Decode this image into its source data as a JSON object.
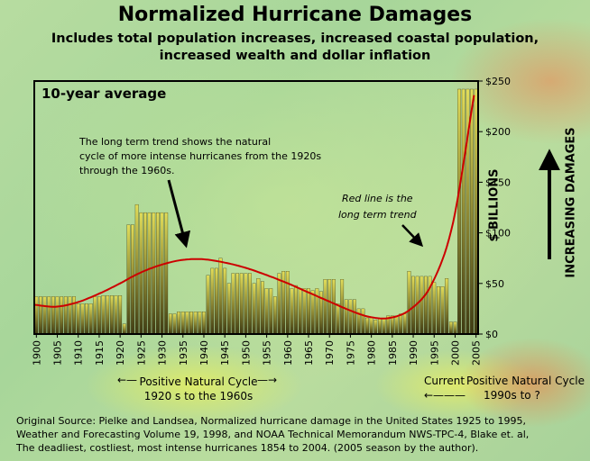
{
  "title": "Normalized Hurricane Damages",
  "subtitle_line1": "Includes total population increases, increased coastal population,",
  "subtitle_line2": "increased wealth and dollar inflation",
  "chart_data": {
    "type": "bar",
    "panel_label": "10-year average",
    "y_unit_label": "$ BILLIONS",
    "side_label": "INCREASING DAMAGES",
    "ylim": [
      0,
      250
    ],
    "yticks": [
      "$0",
      "$50",
      "$100",
      "$150",
      "$200",
      "$250"
    ],
    "ytick_values": [
      0,
      50,
      100,
      150,
      200,
      250
    ],
    "xlim": [
      1900,
      2006
    ],
    "xticks": [
      "1900",
      "1905",
      "1910",
      "1915",
      "1920",
      "1925",
      "1930",
      "1935",
      "1940",
      "1945",
      "1950",
      "1955",
      "1960",
      "1965",
      "1970",
      "1975",
      "1980",
      "1985",
      "1990",
      "1995",
      "2000",
      "2005"
    ],
    "xtick_values": [
      1900,
      1905,
      1910,
      1915,
      1920,
      1925,
      1930,
      1935,
      1940,
      1945,
      1950,
      1955,
      1960,
      1965,
      1970,
      1975,
      1980,
      1985,
      1990,
      1995,
      2000,
      2005
    ],
    "years": [
      1900,
      1901,
      1902,
      1903,
      1904,
      1905,
      1906,
      1907,
      1908,
      1909,
      1910,
      1911,
      1912,
      1913,
      1914,
      1915,
      1916,
      1917,
      1918,
      1919,
      1920,
      1921,
      1922,
      1923,
      1924,
      1925,
      1926,
      1927,
      1928,
      1929,
      1930,
      1931,
      1932,
      1933,
      1934,
      1935,
      1936,
      1937,
      1938,
      1939,
      1940,
      1941,
      1942,
      1943,
      1944,
      1945,
      1946,
      1947,
      1948,
      1949,
      1950,
      1951,
      1952,
      1953,
      1954,
      1955,
      1956,
      1957,
      1958,
      1959,
      1960,
      1961,
      1962,
      1963,
      1964,
      1965,
      1966,
      1967,
      1968,
      1969,
      1970,
      1971,
      1972,
      1973,
      1974,
      1975,
      1976,
      1977,
      1978,
      1979,
      1980,
      1981,
      1982,
      1983,
      1984,
      1985,
      1986,
      1987,
      1988,
      1989,
      1990,
      1991,
      1992,
      1993,
      1994,
      1995,
      1996,
      1997,
      1998,
      1999,
      2000,
      2001,
      2002,
      2003,
      2004,
      2005
    ],
    "values": [
      37,
      37,
      37,
      37,
      37,
      37,
      37,
      37,
      37,
      37,
      30,
      30,
      30,
      30,
      37,
      37,
      38,
      38,
      38,
      38,
      38,
      10,
      108,
      108,
      128,
      120,
      120,
      120,
      120,
      120,
      120,
      120,
      20,
      20,
      22,
      22,
      22,
      22,
      22,
      22,
      22,
      58,
      65,
      65,
      75,
      65,
      50,
      60,
      60,
      60,
      60,
      60,
      50,
      55,
      52,
      45,
      45,
      37,
      60,
      62,
      62,
      45,
      48,
      45,
      45,
      45,
      43,
      45,
      42,
      54,
      54,
      54,
      30,
      54,
      34,
      34,
      34,
      25,
      25,
      16,
      16,
      14,
      15,
      15,
      18,
      18,
      18,
      20,
      20,
      62,
      57,
      57,
      57,
      57,
      57,
      51,
      47,
      47,
      55,
      12,
      12,
      242,
      242,
      242,
      242,
      242
    ],
    "trend_years": [
      1900,
      1905,
      1910,
      1915,
      1920,
      1925,
      1930,
      1935,
      1940,
      1945,
      1950,
      1955,
      1960,
      1965,
      1970,
      1975,
      1980,
      1985,
      1990,
      1995,
      2000,
      2005
    ],
    "trend_values": [
      29,
      27,
      31,
      39,
      49,
      60,
      68,
      73,
      74,
      71,
      66,
      59,
      51,
      42,
      33,
      24,
      17,
      16,
      25,
      50,
      110,
      236
    ],
    "trend_color": "#cc0000",
    "bar_color_light": "#e2dd5a",
    "bar_color_dark": "#3e3a12",
    "annotations": [
      {
        "id": "trend-note",
        "text": [
          "The long term trend shows the natural",
          "cycle of more intense hurricanes from the 1920s",
          "through the 1960s."
        ]
      },
      {
        "id": "redline-note",
        "text": [
          "Red line is the",
          "long term trend"
        ]
      }
    ]
  },
  "cycles": {
    "left_label": "Positive Natural Cycle",
    "left_range": "1920 s to the 1960s",
    "current_label": "Current",
    "right_label": "Positive Natural Cycle",
    "right_range": "1990s to ?"
  },
  "source_lines": [
    "Original Source:   Pielke and Landsea, Normalized hurricane damage in the United States 1925 to 1995,",
    "Weather and Forecasting Volume 19, 1998, and NOAA Technical Memorandum NWS-TPC-4, Blake et. al,",
    "The deadliest, costliest, most intense hurricanes 1854 to 2004. (2005 season by the author)."
  ]
}
